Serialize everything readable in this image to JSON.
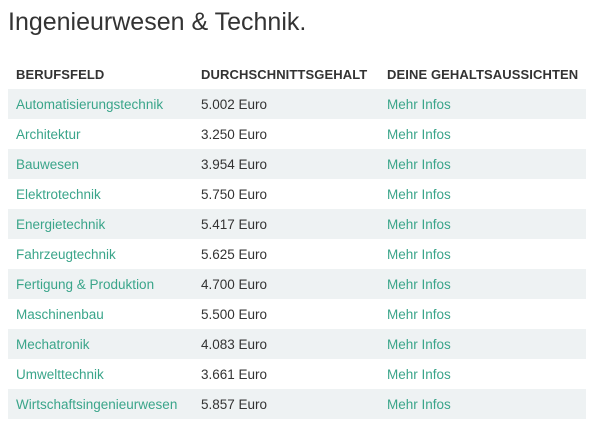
{
  "page": {
    "title": "Ingenieurwesen & Technik."
  },
  "table": {
    "headers": {
      "field": "BERUFSFELD",
      "salary": "DURCHSCHNITTSGEHALT",
      "prospects": "DEINE GEHALTSAUSSICHTEN"
    },
    "rows": [
      {
        "field": "Automatisierungstechnik",
        "salary": "5.002 Euro",
        "link": "Mehr Infos"
      },
      {
        "field": "Architektur",
        "salary": "3.250 Euro",
        "link": "Mehr Infos"
      },
      {
        "field": "Bauwesen",
        "salary": "3.954 Euro",
        "link": "Mehr Infos"
      },
      {
        "field": "Elektrotechnik",
        "salary": "5.750 Euro",
        "link": "Mehr Infos"
      },
      {
        "field": "Energietechnik",
        "salary": "5.417 Euro",
        "link": "Mehr Infos"
      },
      {
        "field": "Fahrzeugtechnik",
        "salary": "5.625 Euro",
        "link": "Mehr Infos"
      },
      {
        "field": "Fertigung & Produktion",
        "salary": "4.700 Euro",
        "link": "Mehr Infos"
      },
      {
        "field": "Maschinenbau",
        "salary": "5.500 Euro",
        "link": "Mehr Infos"
      },
      {
        "field": "Mechatronik",
        "salary": "4.083 Euro",
        "link": "Mehr Infos"
      },
      {
        "field": "Umwelttechnik",
        "salary": "3.661 Euro",
        "link": "Mehr Infos"
      },
      {
        "field": "Wirtschaftsingenieurwesen",
        "salary": "5.857 Euro",
        "link": "Mehr Infos"
      }
    ]
  },
  "colors": {
    "link": "#3aa58a",
    "stripe": "#eef2f3",
    "text": "#333333"
  }
}
